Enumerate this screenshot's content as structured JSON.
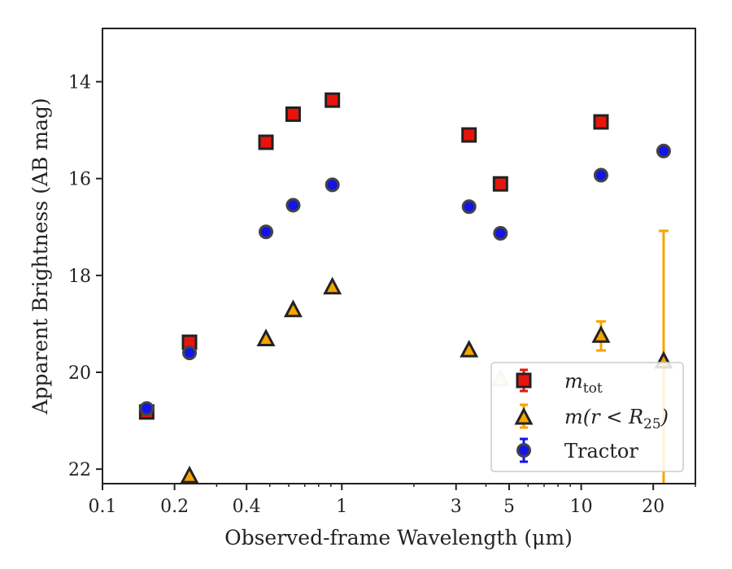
{
  "chart_data": {
    "type": "scatter",
    "xlabel": "Observed-frame Wavelength (μm)",
    "ylabel": "Apparent Brightness (AB mag)",
    "xscale": "log",
    "xlim": [
      0.1,
      30
    ],
    "ylim": [
      22.3,
      12.9
    ],
    "y_inverted": true,
    "xticks": [
      0.1,
      0.2,
      0.4,
      1,
      3,
      5,
      10,
      20
    ],
    "xtick_labels": [
      "0.1",
      "0.2",
      "0.4",
      "1",
      "3",
      "5",
      "10",
      "20"
    ],
    "yticks": [
      14,
      16,
      18,
      20,
      22
    ],
    "ytick_labels": [
      "14",
      "16",
      "18",
      "20",
      "22"
    ],
    "grid": false,
    "legend_position": "lower-right",
    "series": [
      {
        "name_main": "m",
        "name_sub": "tot",
        "marker": "square",
        "color": "#e8140c",
        "errorbar_color": "#e8140c",
        "x": [
          0.153,
          0.231,
          0.482,
          0.626,
          0.913,
          3.4,
          4.6,
          12.1,
          22.1
        ],
        "y": [
          20.82,
          19.38,
          15.25,
          14.67,
          14.38,
          15.1,
          16.11,
          14.83,
          null
        ],
        "yerr": [
          0.05,
          0.03,
          0.01,
          0.01,
          0.01,
          0.01,
          0.01,
          0.01,
          null
        ]
      },
      {
        "name_main": "m(r < R",
        "name_sub": "25",
        "name_close": ")",
        "marker": "triangle",
        "color": "#f5a400",
        "errorbar_color": "#f5a400",
        "x": [
          0.153,
          0.231,
          0.482,
          0.626,
          0.913,
          3.4,
          4.6,
          12.1,
          22.1
        ],
        "y": [
          null,
          22.15,
          19.32,
          18.72,
          18.25,
          19.55,
          20.15,
          19.25,
          19.78
        ],
        "yerr": [
          null,
          0.05,
          0.02,
          0.02,
          0.02,
          0.02,
          0.03,
          0.3,
          2.7
        ],
        "faded_index": [
          6
        ]
      },
      {
        "name": "Tractor",
        "marker": "circle",
        "color": "#1414e6",
        "errorbar_color": "#1414e6",
        "x": [
          0.153,
          0.231,
          0.482,
          0.626,
          0.913,
          3.4,
          4.6,
          12.1,
          22.1
        ],
        "y": [
          20.75,
          19.6,
          17.1,
          16.55,
          16.13,
          16.58,
          17.13,
          15.93,
          15.43
        ],
        "yerr": [
          0.04,
          0.03,
          0.01,
          0.01,
          0.01,
          0.01,
          0.01,
          0.01,
          0.03
        ]
      }
    ]
  }
}
